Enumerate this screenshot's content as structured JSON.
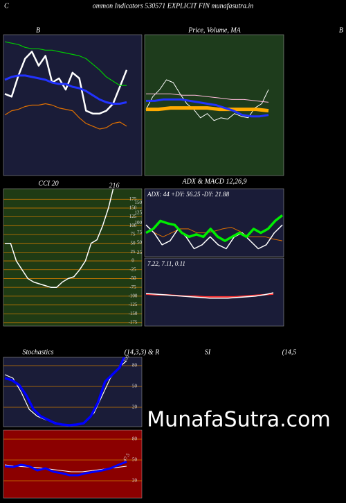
{
  "header": {
    "left": "C",
    "title": "ommon Indicators 530571 EXPLICIT FIN munafasutra.in",
    "right": "B"
  },
  "watermark": "MunafaSutra.com",
  "rsi_title": "SI",
  "rsi_params": "(14,5",
  "chart_data": [
    {
      "type": "line",
      "title": "B",
      "ylim": [
        0,
        100
      ],
      "series": [
        {
          "color": "#ffffff",
          "values": [
            58,
            56,
            71,
            83,
            88,
            78,
            85,
            66,
            69,
            61,
            73,
            69,
            46,
            44,
            44,
            46,
            51,
            63,
            75
          ]
        },
        {
          "color": "#00cc00",
          "values": [
            95,
            94,
            93,
            91,
            90,
            90,
            89,
            89,
            88,
            87,
            86,
            85,
            83,
            79,
            75,
            70,
            67,
            64,
            64
          ]
        },
        {
          "color": "#2233ff",
          "values": [
            68,
            70,
            71,
            71,
            70,
            69,
            68,
            66,
            65,
            65,
            63,
            62,
            60,
            57,
            54,
            52,
            51,
            51,
            52
          ]
        },
        {
          "color": "#e07000",
          "values": [
            43,
            46,
            47,
            49,
            50,
            50,
            51,
            50,
            48,
            47,
            46,
            41,
            37,
            35,
            33,
            34,
            37,
            38,
            35
          ]
        }
      ]
    },
    {
      "type": "line",
      "title": "Price, Volume, MA",
      "ylim": [
        0,
        100
      ],
      "series": [
        {
          "color": "#ffffff",
          "values": [
            47,
            56,
            61,
            68,
            66,
            58,
            51,
            47,
            41,
            44,
            39,
            41,
            40,
            44,
            42,
            41,
            48,
            51,
            61
          ]
        },
        {
          "color": "#ffaa00",
          "values": [
            47,
            47,
            48,
            48,
            48,
            48,
            47,
            47,
            47,
            47,
            46
          ]
        },
        {
          "color": "#2233ff",
          "values": [
            53,
            53,
            54,
            54,
            54,
            53,
            52,
            51,
            50,
            48,
            46,
            43,
            42,
            42,
            43
          ]
        },
        {
          "color": "#ffbbdd",
          "values": [
            58,
            58,
            58,
            57,
            57,
            56,
            55,
            54,
            54,
            53,
            52
          ]
        }
      ]
    },
    {
      "type": "line",
      "title": "CCI 20",
      "ylim": [
        -185,
        205
      ],
      "grid": true,
      "yticks": [
        175,
        150,
        125,
        100,
        75,
        50,
        25,
        0,
        -25,
        -50,
        -75,
        -100,
        -125,
        -150,
        -175
      ],
      "series": [
        {
          "color": "#ffffff",
          "values": [
            50,
            50,
            0,
            -25,
            -50,
            -60,
            -65,
            -70,
            -75,
            -75,
            -60,
            -50,
            -45,
            -25,
            0,
            50,
            60,
            100,
            150,
            216
          ]
        }
      ]
    },
    {
      "type": "line",
      "title": "ADX  & MACD 12,26,9",
      "annotation": "ADX: 44  +DY: 56.25 -DY: 21.88",
      "ylim": [
        15,
        186
      ],
      "yticks": [
        150,
        125,
        100,
        75,
        50,
        25
      ],
      "series": [
        {
          "color": "#e07000",
          "values": [
            95,
            75,
            65,
            75,
            85,
            85,
            75,
            75,
            79,
            85,
            89,
            79,
            65,
            65,
            65,
            59,
            55
          ]
        },
        {
          "color": "#ffffff",
          "values": [
            95,
            75,
            45,
            55,
            85,
            65,
            35,
            45,
            65,
            45,
            35,
            65,
            75,
            55,
            35,
            45,
            75,
            95
          ]
        },
        {
          "color": "#00ee00",
          "values": [
            75,
            85,
            105,
            99,
            95,
            75,
            65,
            71,
            65,
            85,
            65,
            55,
            65,
            75,
            65,
            85,
            75,
            85,
            105,
            119
          ]
        }
      ]
    },
    {
      "type": "line",
      "annotation": "7.22,  7.11,  0.11",
      "ylim": [
        0,
        100
      ],
      "series": [
        {
          "color": "#ff3333",
          "values": [
            47,
            46,
            46,
            45,
            44,
            44,
            43,
            43,
            43,
            43,
            44,
            45,
            46,
            47
          ]
        },
        {
          "color": "#ffffff",
          "values": [
            48,
            47,
            46,
            45,
            44,
            43,
            42,
            41,
            41,
            41,
            42,
            43,
            44,
            46,
            49
          ]
        }
      ]
    },
    {
      "type": "line",
      "title": "Stochastics",
      "subtitle": "(14,3,3) & R",
      "ylim": [
        -8,
        92
      ],
      "grid": true,
      "yticks": [
        80,
        50,
        20
      ],
      "series": [
        {
          "color": "#ffffff",
          "values": [
            67,
            62,
            42,
            17,
            7,
            2,
            -1,
            -5,
            -6,
            -5,
            -1,
            12,
            37,
            62,
            77,
            87
          ]
        },
        {
          "color": "#0000ff",
          "values": [
            62,
            59,
            52,
            37,
            17,
            7,
            2,
            -3,
            -5,
            -6,
            -5,
            -3,
            7,
            27,
            57,
            67,
            77,
            100
          ]
        }
      ]
    },
    {
      "type": "line",
      "ylim": [
        -5,
        93
      ],
      "grid": true,
      "yticks": [
        80,
        50,
        20
      ],
      "series": [
        {
          "color": "#ffffff",
          "values": [
            43,
            41,
            40,
            39,
            37,
            35,
            33,
            33,
            35,
            37,
            39,
            41
          ]
        },
        {
          "color": "#0000ff",
          "values": [
            41,
            40,
            43,
            41,
            35,
            38,
            33,
            31,
            28,
            28,
            31,
            33,
            35,
            38,
            43,
            47.5
          ]
        }
      ]
    }
  ]
}
